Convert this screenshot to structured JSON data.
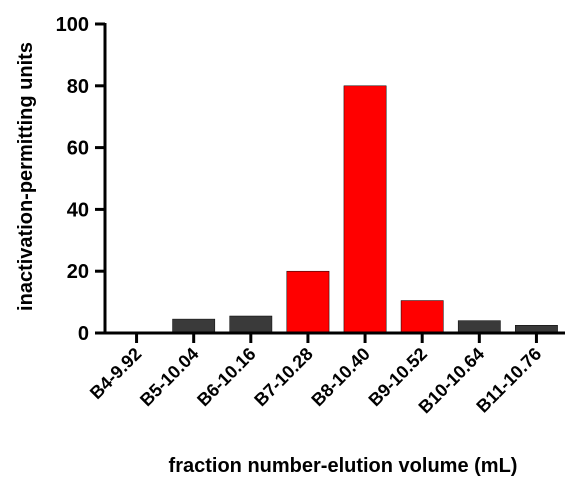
{
  "chart_data": {
    "type": "bar",
    "title": "",
    "xlabel": "fraction number-elution volume (mL)",
    "ylabel": "inactivation-permitting units",
    "ylim": [
      0,
      100
    ],
    "yticks": [
      "0",
      "20",
      "40",
      "60",
      "80",
      "100"
    ],
    "categories": [
      "B4-9.92",
      "B5-10.04",
      "B6-10.16",
      "B7-10.28",
      "B8-10.40",
      "B9-10.52",
      "B10-10.64",
      "B11-10.76"
    ],
    "values": [
      0,
      4.5,
      5.5,
      20,
      80,
      10.5,
      4,
      2.5
    ],
    "bar_colors": [
      "#3a3a3a",
      "#3a3a3a",
      "#3a3a3a",
      "#ff0000",
      "#ff0000",
      "#ff0000",
      "#3a3a3a",
      "#3a3a3a"
    ],
    "grid": false,
    "legend": "none"
  }
}
